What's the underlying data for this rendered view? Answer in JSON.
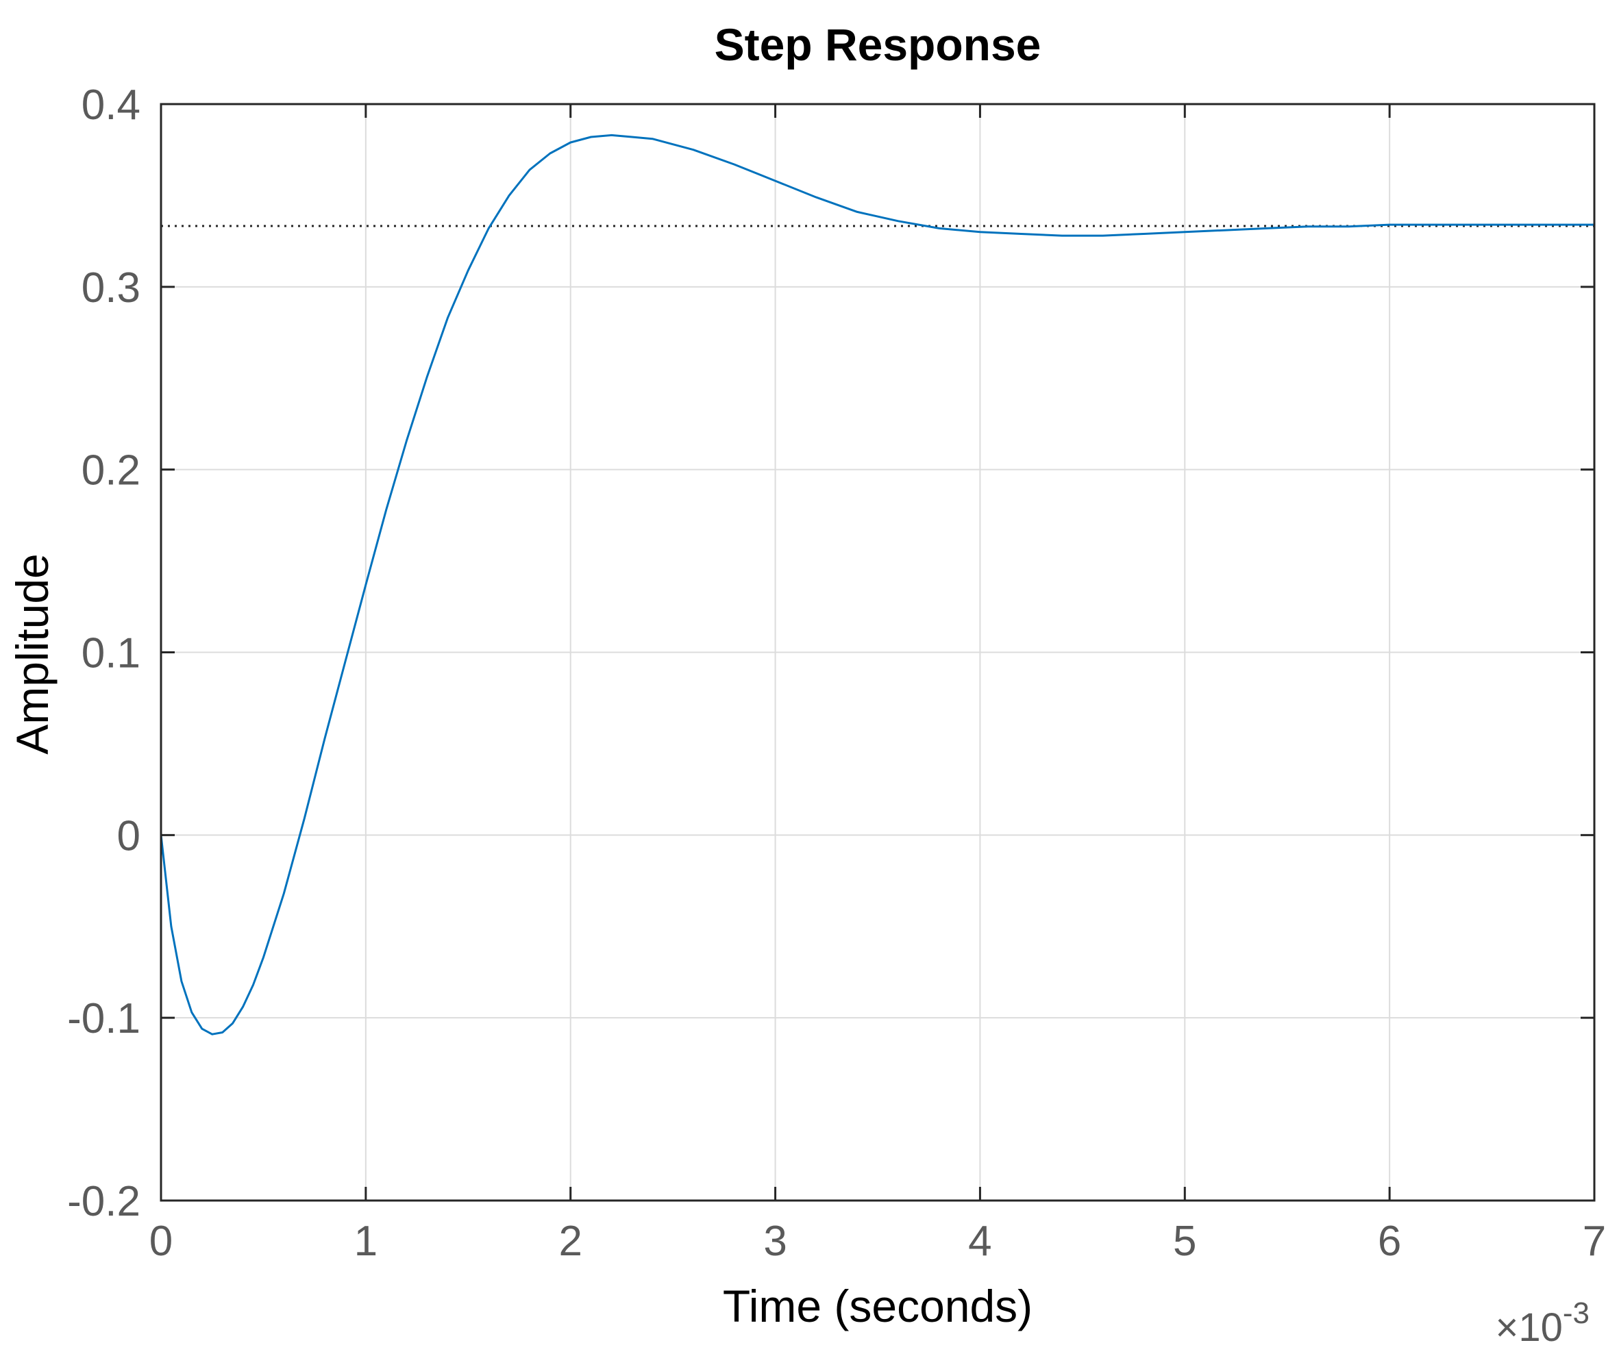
{
  "chart_data": {
    "type": "line",
    "title": "Step Response",
    "xlabel": "Time (seconds)",
    "ylabel": "Amplitude",
    "x_exponent": {
      "base": "×10",
      "power": "-3"
    },
    "xlim": [
      0,
      0.007
    ],
    "ylim": [
      -0.2,
      0.4
    ],
    "xticks": [
      0,
      0.001,
      0.002,
      0.003,
      0.004,
      0.005,
      0.006,
      0.007
    ],
    "xtick_labels": [
      "0",
      "1",
      "2",
      "3",
      "4",
      "5",
      "6",
      "7"
    ],
    "yticks": [
      -0.2,
      -0.1,
      0,
      0.1,
      0.2,
      0.3,
      0.4
    ],
    "ytick_labels": [
      "-0.2",
      "-0.1",
      "0",
      "0.1",
      "0.2",
      "0.3",
      "0.4"
    ],
    "grid": true,
    "series": [
      {
        "color": "#0072bd",
        "x": [
          0,
          5e-05,
          0.0001,
          0.00015,
          0.0002,
          0.00025,
          0.0003,
          0.00035,
          0.0004,
          0.00045,
          0.0005,
          0.0006,
          0.0007,
          0.0008,
          0.0009,
          0.001,
          0.0011,
          0.0012,
          0.0013,
          0.0014,
          0.0015,
          0.0016,
          0.0017,
          0.0018,
          0.0019,
          0.002,
          0.0021,
          0.0022,
          0.0023,
          0.0024,
          0.0025,
          0.0026,
          0.0028,
          0.003,
          0.0032,
          0.0034,
          0.0036,
          0.0038,
          0.004,
          0.0042,
          0.0044,
          0.0045,
          0.0046,
          0.0048,
          0.005,
          0.0052,
          0.0054,
          0.0056,
          0.0058,
          0.006,
          0.0062,
          0.0064,
          0.0066,
          0.0068,
          0.007
        ],
        "y": [
          0,
          -0.05,
          -0.08,
          -0.097,
          -0.106,
          -0.109,
          -0.108,
          -0.103,
          -0.094,
          -0.082,
          -0.067,
          -0.032,
          0.009,
          0.053,
          0.095,
          0.137,
          0.178,
          0.216,
          0.251,
          0.283,
          0.309,
          0.332,
          0.35,
          0.364,
          0.373,
          0.379,
          0.382,
          0.383,
          0.382,
          0.381,
          0.378,
          0.375,
          0.367,
          0.358,
          0.349,
          0.341,
          0.336,
          0.332,
          0.33,
          0.329,
          0.328,
          0.328,
          0.328,
          0.329,
          0.33,
          0.331,
          0.332,
          0.333,
          0.333,
          0.334,
          0.334,
          0.334,
          0.334,
          0.334,
          0.334
        ]
      }
    ],
    "reference_lines": [
      {
        "y": 0.3333,
        "style": "dotted",
        "color": "#262626"
      }
    ]
  }
}
